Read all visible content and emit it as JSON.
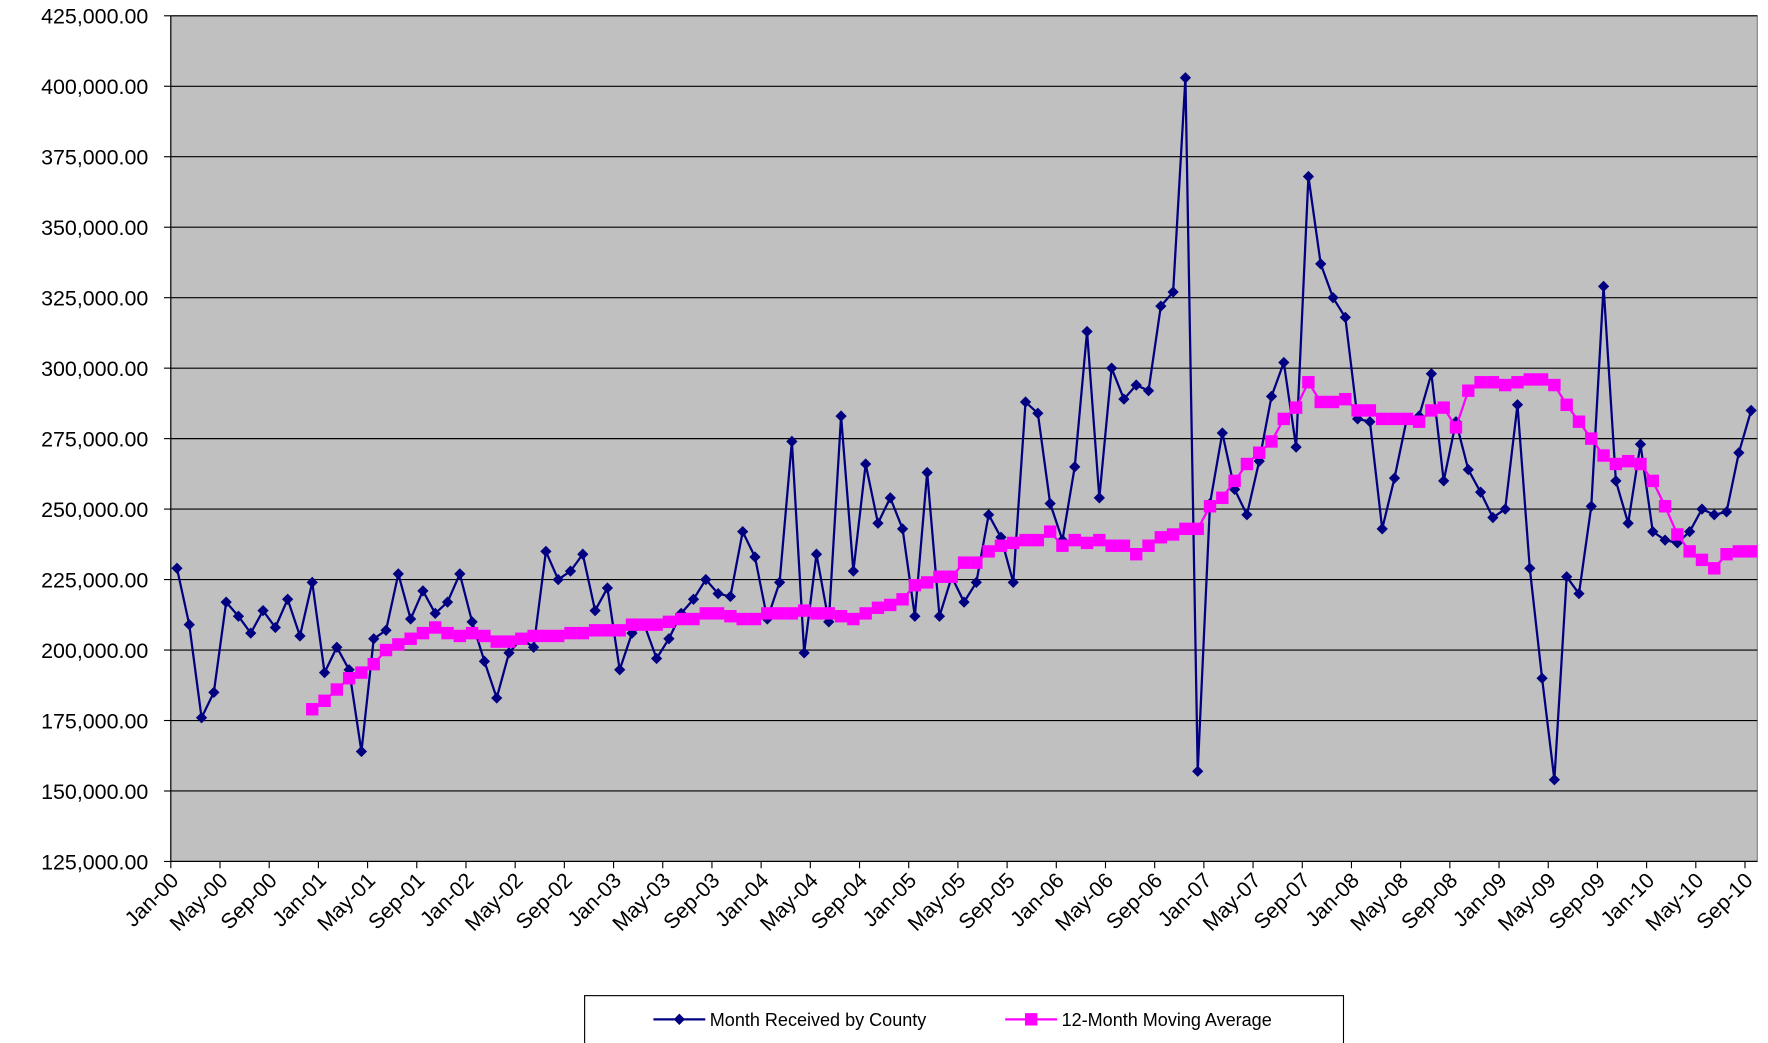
{
  "chart_data": {
    "type": "line",
    "categories": [
      "Jan-00",
      null,
      null,
      null,
      "May-00",
      null,
      null,
      null,
      "Sep-00",
      null,
      null,
      null,
      "Jan-01",
      null,
      null,
      null,
      "May-01",
      null,
      null,
      null,
      "Sep-01",
      null,
      null,
      null,
      "Jan-02",
      null,
      null,
      null,
      "May-02",
      null,
      null,
      null,
      "Sep-02",
      null,
      null,
      null,
      "Jan-03",
      null,
      null,
      null,
      "May-03",
      null,
      null,
      null,
      "Sep-03",
      null,
      null,
      null,
      "Jan-04",
      null,
      null,
      null,
      "May-04",
      null,
      null,
      null,
      "Sep-04",
      null,
      null,
      null,
      "Jan-05",
      null,
      null,
      null,
      "May-05",
      null,
      null,
      null,
      "Sep-05",
      null,
      null,
      null,
      "Jan-06",
      null,
      null,
      null,
      "May-06",
      null,
      null,
      null,
      "Sep-06",
      null,
      null,
      null,
      "Jan-07",
      null,
      null,
      null,
      "May-07",
      null,
      null,
      null,
      "Sep-07",
      null,
      null,
      null,
      "Jan-08",
      null,
      null,
      null,
      "May-08",
      null,
      null,
      null,
      "Sep-08",
      null,
      null,
      null,
      "Jan-09",
      null,
      null,
      null,
      "May-09",
      null,
      null,
      null,
      "Sep-09",
      null,
      null,
      null,
      "Jan-10",
      null,
      null,
      null,
      "May-10",
      null,
      null,
      null,
      "Sep-10"
    ],
    "series": [
      {
        "name": "Month Received by County",
        "color": "#000080",
        "marker": "diamond",
        "values": [
          229000,
          209000,
          176000,
          185000,
          217000,
          212000,
          206000,
          214000,
          208000,
          218000,
          205000,
          224000,
          192000,
          201000,
          193000,
          164000,
          204000,
          207000,
          227000,
          211000,
          221000,
          213000,
          217000,
          227000,
          210000,
          196000,
          183000,
          199000,
          204000,
          201000,
          235000,
          225000,
          228000,
          234000,
          214000,
          222000,
          193000,
          206000,
          209000,
          197000,
          204000,
          213000,
          218000,
          225000,
          220000,
          219000,
          242000,
          233000,
          211000,
          224000,
          274000,
          199000,
          234000,
          210000,
          283000,
          228000,
          266000,
          245000,
          254000,
          243000,
          212000,
          263000,
          212000,
          226000,
          217000,
          224000,
          248000,
          240000,
          224000,
          288000,
          284000,
          252000,
          239000,
          265000,
          313000,
          254000,
          300000,
          289000,
          294000,
          292000,
          322000,
          327000,
          403000,
          157000,
          252000,
          277000,
          257000,
          248000,
          267000,
          290000,
          302000,
          272000,
          368000,
          337000,
          325000,
          318000,
          282000,
          281000,
          243000,
          261000,
          282000,
          283000,
          298000,
          260000,
          281000,
          264000,
          256000,
          247000,
          250000,
          287000,
          229000,
          190000,
          154000,
          226000,
          220000,
          251000,
          329000,
          260000,
          245000,
          273000,
          242000,
          239000,
          238000,
          242000,
          250000,
          248000,
          249000,
          270000,
          285000
        ]
      },
      {
        "name": "12-Month Moving Average",
        "color": "#FF00FF",
        "marker": "square",
        "values": [
          null,
          null,
          null,
          null,
          null,
          null,
          null,
          null,
          null,
          null,
          null,
          179000,
          182000,
          186000,
          190000,
          192000,
          195000,
          200000,
          202000,
          204000,
          206000,
          208000,
          206000,
          205000,
          206000,
          205000,
          203000,
          203000,
          204000,
          205000,
          205000,
          205000,
          206000,
          206000,
          207000,
          207000,
          207000,
          209000,
          209000,
          209000,
          210000,
          211000,
          211000,
          213000,
          213000,
          212000,
          211000,
          211000,
          213000,
          213000,
          213000,
          214000,
          213000,
          213000,
          212000,
          211000,
          213000,
          215000,
          216000,
          218000,
          223000,
          224000,
          226000,
          226000,
          231000,
          231000,
          235000,
          237000,
          238000,
          239000,
          239000,
          242000,
          237000,
          239000,
          238000,
          239000,
          237000,
          237000,
          234000,
          237000,
          240000,
          241000,
          243000,
          243000,
          251000,
          254000,
          260000,
          266000,
          270000,
          274000,
          282000,
          286000,
          295000,
          288000,
          288000,
          289000,
          285000,
          285000,
          282000,
          282000,
          282000,
          281000,
          285000,
          286000,
          279000,
          292000,
          295000,
          295000,
          294000,
          295000,
          296000,
          296000,
          294000,
          287000,
          281000,
          275000,
          269000,
          266000,
          267000,
          266000,
          260000,
          251000,
          241000,
          235000,
          232000,
          229000,
          234000,
          235000,
          235000
        ]
      }
    ],
    "ylim": [
      125000,
      425000
    ],
    "yticks": [
      {
        "value": 125000,
        "label": "125,000.00"
      },
      {
        "value": 150000,
        "label": "150,000.00"
      },
      {
        "value": 175000,
        "label": "175,000.00"
      },
      {
        "value": 200000,
        "label": "200,000.00"
      },
      {
        "value": 225000,
        "label": "225,000.00"
      },
      {
        "value": 250000,
        "label": "250,000.00"
      },
      {
        "value": 275000,
        "label": "275,000.00"
      },
      {
        "value": 300000,
        "label": "300,000.00"
      },
      {
        "value": 325000,
        "label": "325,000.00"
      },
      {
        "value": 350000,
        "label": "350,000.00"
      },
      {
        "value": 375000,
        "label": "375,000.00"
      },
      {
        "value": 400000,
        "label": "400,000.00"
      },
      {
        "value": 425000,
        "label": "425,000.00"
      }
    ],
    "grid": true,
    "legend": "bottom",
    "plot_background": "#C0C0C0"
  }
}
